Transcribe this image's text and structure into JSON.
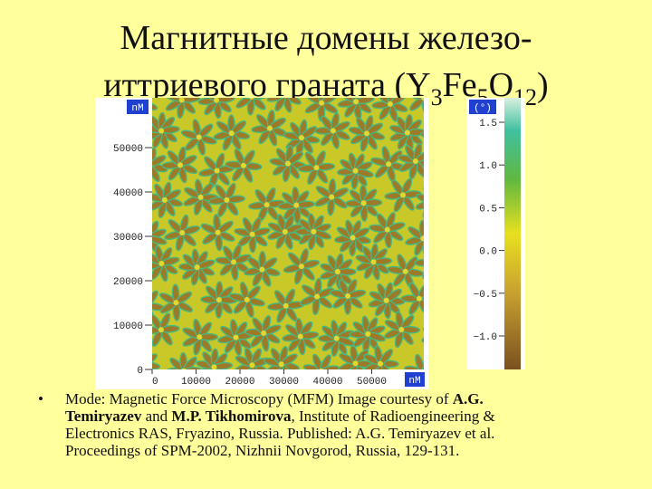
{
  "title": {
    "line1": "Магнитные домены железо-",
    "line2": [
      "иттриевого граната (Y",
      "3",
      "Fe",
      "5",
      "O",
      "12",
      ")"
    ]
  },
  "image": {
    "y_unit": "nM",
    "x_unit": "nM",
    "yticks": [
      "0",
      "10000",
      "20000",
      "30000",
      "40000",
      "50000"
    ],
    "xticks": [
      "0",
      "10000",
      "20000",
      "30000",
      "40000",
      "50000"
    ],
    "colorbar": {
      "unit": "(°)",
      "ticks": [
        "1.5",
        "1.0",
        "0.5",
        "0.0",
        "−0.5",
        "−1.0"
      ]
    }
  },
  "bullet": {
    "lines": [
      [
        {
          "text": "Mode: Magnetic Force Microscopy (MFM) Image courtesy of "
        },
        {
          "text": "A.G.",
          "bold": true
        }
      ],
      [
        {
          "text": "Temiryazev",
          "bold": true
        },
        {
          "text": " and "
        },
        {
          "text": "M.P. Tikhomirova",
          "bold": true
        },
        {
          "text": ", Institute of Radioengineering &"
        }
      ],
      [
        {
          "text": "Electronics RAS, Fryazino, Russia. Published: A.G. Temiryazev et al."
        }
      ],
      [
        {
          "text": "Proceedings of SPM-2002, Nizhnii Novgorod, Russia, 129-131."
        }
      ]
    ]
  }
}
